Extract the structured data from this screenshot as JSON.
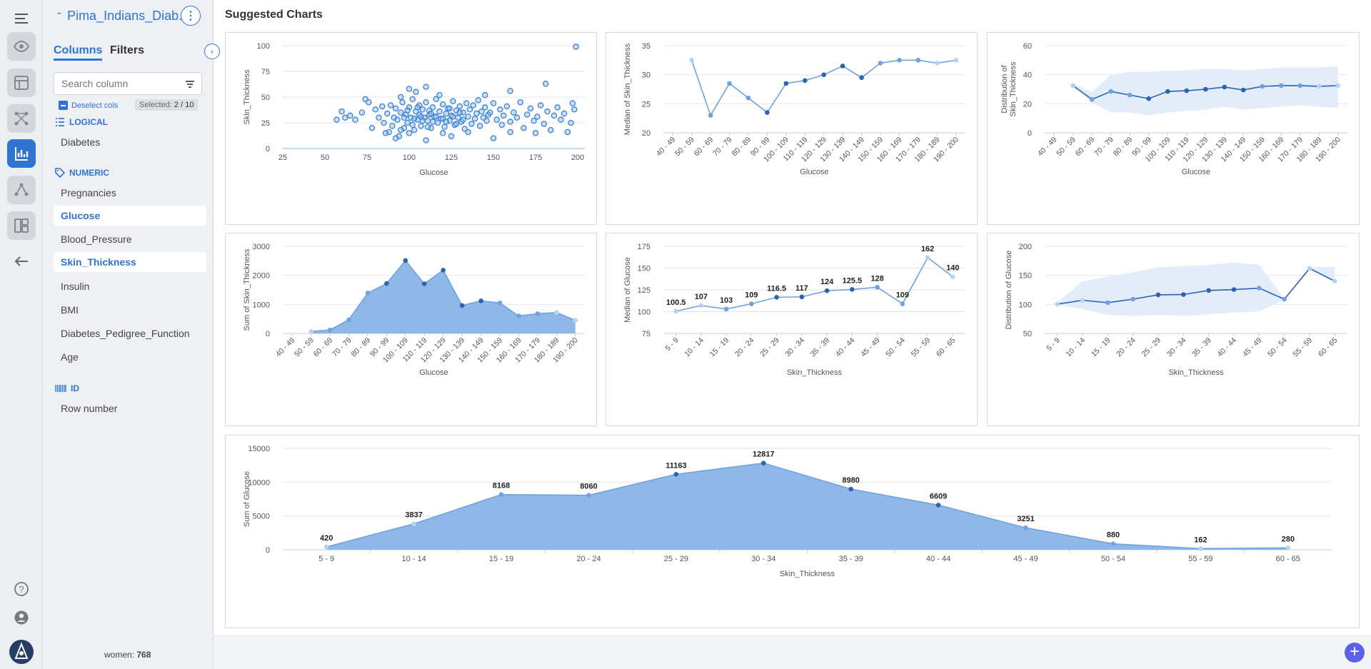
{
  "dataset": {
    "title": "Pima_Indians_Diab..."
  },
  "panel": {
    "tabs": {
      "columns": "Columns",
      "filters": "Filters"
    },
    "search_placeholder": "Search column",
    "deselect_label": "Deselect cols",
    "selected_prefix": "Selected: ",
    "selected_count": "2 / 10",
    "groups": {
      "logical": {
        "label": "LOGICAL",
        "items": [
          "Diabetes"
        ]
      },
      "numeric": {
        "label": "NUMERIC",
        "items": [
          "Pregnancies",
          "Glucose",
          "Blood_Pressure",
          "Skin_Thickness",
          "Insulin",
          "BMI",
          "Diabetes_Pedigree_Function",
          "Age"
        ]
      },
      "id": {
        "label": "ID",
        "items": [
          "Row number"
        ]
      }
    },
    "footer_prefix": "women: ",
    "footer_count": "768"
  },
  "main": {
    "title": "Suggested Charts"
  },
  "colors": {
    "accent": "#2f74d0",
    "fill": "#8fb8e8",
    "line": "#6fa2de",
    "band": "#e3ecf9",
    "dark_point": "#2c63b5",
    "light_point": "#b4d2f4",
    "fab": "#5b62e8"
  },
  "chart_data": [
    {
      "type": "scatter",
      "xlabel": "Glucose",
      "ylabel": "Skin_Thickness",
      "xlim": [
        25,
        200
      ],
      "ylim": [
        0,
        100
      ],
      "xticks": [
        25,
        50,
        75,
        100,
        125,
        150,
        175,
        200
      ],
      "yticks": [
        0,
        25,
        50,
        75,
        100
      ],
      "points": [
        [
          199,
          99
        ],
        [
          181,
          63
        ],
        [
          57,
          28
        ],
        [
          60,
          36
        ],
        [
          62,
          30
        ],
        [
          65,
          32
        ],
        [
          68,
          28
        ],
        [
          72,
          35
        ],
        [
          74,
          48
        ],
        [
          76,
          45
        ],
        [
          78,
          20
        ],
        [
          80,
          38
        ],
        [
          82,
          30
        ],
        [
          84,
          41
        ],
        [
          85,
          25
        ],
        [
          87,
          34
        ],
        [
          88,
          16
        ],
        [
          89,
          42
        ],
        [
          90,
          22
        ],
        [
          91,
          30
        ],
        [
          92,
          39
        ],
        [
          93,
          28
        ],
        [
          94,
          12
        ],
        [
          95,
          35
        ],
        [
          96,
          45
        ],
        [
          97,
          20
        ],
        [
          98,
          33
        ],
        [
          99,
          25
        ],
        [
          100,
          40
        ],
        [
          101,
          30
        ],
        [
          102,
          48
        ],
        [
          103,
          18
        ],
        [
          104,
          36
        ],
        [
          105,
          28
        ],
        [
          106,
          42
        ],
        [
          107,
          22
        ],
        [
          108,
          38
        ],
        [
          109,
          30
        ],
        [
          110,
          45
        ],
        [
          111,
          27
        ],
        [
          112,
          33
        ],
        [
          113,
          20
        ],
        [
          114,
          40
        ],
        [
          115,
          31
        ],
        [
          116,
          48
        ],
        [
          117,
          25
        ],
        [
          118,
          36
        ],
        [
          119,
          29
        ],
        [
          120,
          43
        ],
        [
          121,
          21
        ],
        [
          122,
          34
        ],
        [
          123,
          39
        ],
        [
          124,
          27
        ],
        [
          125,
          32
        ],
        [
          126,
          46
        ],
        [
          127,
          23
        ],
        [
          128,
          37
        ],
        [
          129,
          30
        ],
        [
          130,
          41
        ],
        [
          131,
          26
        ],
        [
          132,
          35
        ],
        [
          133,
          19
        ],
        [
          134,
          44
        ],
        [
          135,
          31
        ],
        [
          136,
          38
        ],
        [
          137,
          24
        ],
        [
          138,
          42
        ],
        [
          139,
          29
        ],
        [
          140,
          34
        ],
        [
          141,
          47
        ],
        [
          142,
          22
        ],
        [
          143,
          36
        ],
        [
          144,
          30
        ],
        [
          145,
          40
        ],
        [
          146,
          27
        ],
        [
          147,
          33
        ],
        [
          148,
          35
        ],
        [
          150,
          44
        ],
        [
          152,
          28
        ],
        [
          154,
          38
        ],
        [
          155,
          23
        ],
        [
          156,
          32
        ],
        [
          158,
          41
        ],
        [
          160,
          26
        ],
        [
          162,
          35
        ],
        [
          164,
          30
        ],
        [
          166,
          45
        ],
        [
          168,
          20
        ],
        [
          170,
          33
        ],
        [
          172,
          39
        ],
        [
          174,
          27
        ],
        [
          176,
          31
        ],
        [
          178,
          42
        ],
        [
          180,
          24
        ],
        [
          182,
          36
        ],
        [
          184,
          18
        ],
        [
          186,
          32
        ],
        [
          188,
          40
        ],
        [
          190,
          28
        ],
        [
          192,
          34
        ],
        [
          194,
          16
        ],
        [
          196,
          25
        ],
        [
          197,
          44
        ],
        [
          198,
          38
        ],
        [
          100,
          58
        ],
        [
          110,
          60
        ],
        [
          104,
          55
        ],
        [
          95,
          50
        ],
        [
          118,
          52
        ],
        [
          145,
          52
        ],
        [
          160,
          56
        ],
        [
          92,
          10
        ],
        [
          110,
          8
        ],
        [
          125,
          12
        ],
        [
          150,
          10
        ],
        [
          95,
          18
        ],
        [
          86,
          15
        ],
        [
          100,
          15
        ],
        [
          120,
          15
        ],
        [
          135,
          16
        ],
        [
          160,
          16
        ],
        [
          175,
          15
        ],
        [
          106,
          33
        ],
        [
          108,
          27
        ],
        [
          112,
          37
        ],
        [
          114,
          26
        ],
        [
          116,
          31
        ],
        [
          120,
          29
        ],
        [
          122,
          26
        ],
        [
          124,
          39
        ],
        [
          126,
          31
        ],
        [
          128,
          24
        ],
        [
          130,
          35
        ],
        [
          132,
          28
        ],
        [
          99,
          37
        ],
        [
          97,
          30
        ],
        [
          102,
          23
        ],
        [
          103,
          29
        ],
        [
          105,
          40
        ],
        [
          107,
          31
        ],
        [
          111,
          21
        ],
        [
          113,
          34
        ]
      ]
    },
    {
      "type": "line",
      "xlabel": "Glucose",
      "ylabel": "Median of Skin_Thickness",
      "ylim": [
        20,
        35
      ],
      "yticks": [
        20,
        25,
        30,
        35
      ],
      "categories": [
        "40 - 49",
        "50 - 59",
        "60 - 69",
        "70 - 79",
        "80 - 89",
        "90 - 99",
        "100 - 109",
        "110 - 119",
        "120 - 129",
        "130 - 139",
        "140 - 149",
        "150 - 159",
        "160 - 169",
        "170 - 179",
        "180 - 189",
        "190 - 200"
      ],
      "values": [
        null,
        32.5,
        23,
        28.5,
        26,
        23.5,
        28.5,
        29,
        30,
        31.5,
        29.5,
        32,
        32.5,
        32.5,
        32,
        32.5
      ]
    },
    {
      "type": "area",
      "variant": "band",
      "xlabel": "Glucose",
      "ylabel": "Distribution of\nSkin_Thickness",
      "ylim": [
        0,
        60
      ],
      "yticks": [
        0,
        20,
        40,
        60
      ],
      "categories": [
        "40 - 49",
        "50 - 59",
        "60 - 69",
        "70 - 79",
        "80 - 89",
        "90 - 99",
        "100 - 109",
        "110 - 119",
        "120 - 129",
        "130 - 139",
        "140 - 149",
        "150 - 159",
        "160 - 169",
        "170 - 179",
        "180 - 189",
        "190 - 200"
      ],
      "values": [
        null,
        32.5,
        23,
        28.5,
        26,
        23.5,
        28.5,
        29,
        30,
        31.5,
        29.5,
        32,
        32.5,
        32.5,
        32,
        32.5
      ],
      "low": [
        null,
        32,
        21,
        14,
        14,
        12,
        14,
        15,
        16,
        18,
        16,
        17,
        18,
        19,
        18,
        17
      ],
      "high": [
        null,
        34,
        28,
        40,
        42,
        42,
        43,
        43,
        44,
        44,
        43,
        44,
        45,
        45,
        45,
        46
      ]
    },
    {
      "type": "area",
      "xlabel": "Glucose",
      "ylabel": "Sum of Skin_Thickness",
      "ylim": [
        0,
        3000
      ],
      "yticks": [
        0,
        1000,
        2000,
        3000
      ],
      "categories": [
        "40 - 49",
        "50 - 59",
        "60 - 69",
        "70 - 79",
        "80 - 89",
        "90 - 99",
        "100 - 109",
        "110 - 119",
        "120 - 129",
        "130 - 139",
        "140 - 149",
        "150 - 159",
        "160 - 169",
        "170 - 179",
        "180 - 189",
        "190 - 200"
      ],
      "values": [
        null,
        65,
        120,
        470,
        1390,
        1720,
        2510,
        1710,
        2180,
        960,
        1120,
        1050,
        600,
        680,
        720,
        450
      ]
    },
    {
      "type": "line",
      "xlabel": "Skin_Thickness",
      "ylabel": "Median of Glucose",
      "ylim": [
        75,
        175
      ],
      "yticks": [
        75,
        100,
        125,
        150,
        175
      ],
      "categories": [
        "5 - 9",
        "10 - 14",
        "15 - 19",
        "20 - 24",
        "25 - 29",
        "30 - 34",
        "35 - 39",
        "40 - 44",
        "45 - 49",
        "50 - 54",
        "55 - 59",
        "60 - 65"
      ],
      "values": [
        100.5,
        107,
        103,
        109,
        116.5,
        117,
        124,
        125.5,
        128,
        109,
        162,
        140
      ],
      "labels": [
        "100.5",
        "107",
        "103",
        "109",
        "116.5",
        "117",
        "124",
        "125.5",
        "128",
        "109",
        "162",
        "140"
      ]
    },
    {
      "type": "area",
      "variant": "band",
      "xlabel": "Skin_Thickness",
      "ylabel": "Distribution of Glucose",
      "ylim": [
        50,
        200
      ],
      "yticks": [
        50,
        100,
        150,
        200
      ],
      "categories": [
        "5 - 9",
        "10 - 14",
        "15 - 19",
        "20 - 24",
        "25 - 29",
        "30 - 34",
        "35 - 39",
        "40 - 44",
        "45 - 49",
        "50 - 54",
        "55 - 59",
        "60 - 65"
      ],
      "values": [
        100.5,
        107,
        103,
        109,
        116.5,
        117,
        124,
        125.5,
        128,
        109,
        162,
        140
      ],
      "low": [
        99,
        92,
        82,
        80,
        82,
        80,
        83,
        86,
        88,
        108,
        160,
        138
      ],
      "high": [
        103,
        140,
        148,
        155,
        164,
        166,
        168,
        172,
        168,
        110,
        164,
        165
      ]
    },
    {
      "type": "area",
      "xlabel": "Skin_Thickness",
      "ylabel": "Sum of Glucose",
      "ylim": [
        0,
        15000
      ],
      "yticks": [
        0,
        5000,
        10000,
        15000
      ],
      "categories": [
        "5 - 9",
        "10 - 14",
        "15 - 19",
        "20 - 24",
        "25 - 29",
        "30 - 34",
        "35 - 39",
        "40 - 44",
        "45 - 49",
        "50 - 54",
        "55 - 59",
        "60 - 65"
      ],
      "values": [
        420,
        3837,
        8168,
        8060,
        11163,
        12817,
        8980,
        6609,
        3251,
        880,
        162,
        280
      ],
      "labels": [
        "420",
        "3837",
        "8168",
        "8060",
        "11163",
        "12817",
        "8980",
        "6609",
        "3251",
        "880",
        "162",
        "280"
      ]
    }
  ]
}
